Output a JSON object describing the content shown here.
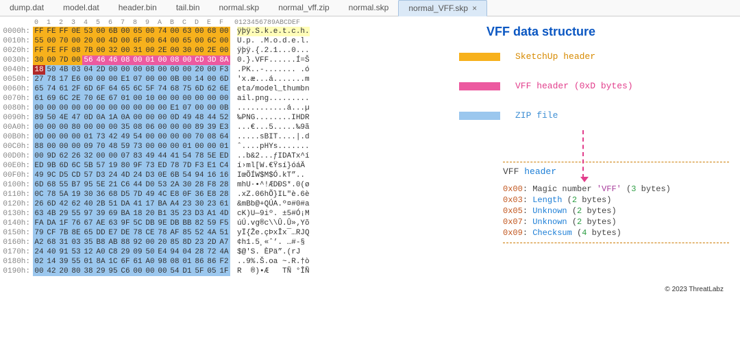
{
  "tabs": [
    {
      "label": "dump.dat",
      "active": false
    },
    {
      "label": "model.dat",
      "active": false
    },
    {
      "label": "header.bin",
      "active": false
    },
    {
      "label": "tail.bin",
      "active": false
    },
    {
      "label": "normal.skp",
      "active": false
    },
    {
      "label": "normal_vff.zip",
      "active": false
    },
    {
      "label": "normal.skp",
      "active": false
    },
    {
      "label": "normal_VFF.skp",
      "active": true
    }
  ],
  "hex": {
    "col_labels": [
      "0",
      "1",
      "2",
      "3",
      "4",
      "5",
      "6",
      "7",
      "8",
      "9",
      "A",
      "B",
      "C",
      "D",
      "E",
      "F"
    ],
    "ascii_header": "0123456789ABCDEF",
    "rows": [
      {
        "offset": "0000h:",
        "bytes": [
          "FF",
          "FE",
          "FF",
          "0E",
          "53",
          "00",
          "6B",
          "00",
          "65",
          "00",
          "74",
          "00",
          "63",
          "00",
          "68",
          "00"
        ],
        "ascii": "ÿþÿ.S.k.e.t.c.h.",
        "hl": "orange",
        "ascii_hl": "hl-yellow"
      },
      {
        "offset": "0010h:",
        "bytes": [
          "55",
          "00",
          "70",
          "00",
          "20",
          "00",
          "4D",
          "00",
          "6F",
          "00",
          "64",
          "00",
          "65",
          "00",
          "6C",
          "00"
        ],
        "ascii": "U.p. .M.o.d.e.l.",
        "hl": "orange"
      },
      {
        "offset": "0020h:",
        "bytes": [
          "FF",
          "FE",
          "FF",
          "08",
          "7B",
          "00",
          "32",
          "00",
          "31",
          "00",
          "2E",
          "00",
          "30",
          "00",
          "2E",
          "00"
        ],
        "ascii": "ÿþÿ.{.2.1...0...",
        "hl": "orange"
      },
      {
        "offset": "0030h:",
        "bytes": [
          "30",
          "00",
          "7D",
          "00",
          "56",
          "46",
          "46",
          "08",
          "00",
          "01",
          "00",
          "08",
          "00",
          "CD",
          "3D",
          "8A"
        ],
        "ascii": "0.}.VFF......Í=Š",
        "hl": "orange",
        "split": 4,
        "hl2": "pink"
      },
      {
        "offset": "0040h:",
        "bytes": [
          "18",
          "50",
          "4B",
          "03",
          "04",
          "2D",
          "00",
          "00",
          "00",
          "08",
          "00",
          "00",
          "00",
          "20",
          "00",
          "F3"
        ],
        "ascii": ".PK..-....... .ó",
        "hl": "blue",
        "first_byte_hl": "hl-darkred"
      },
      {
        "offset": "0050h:",
        "bytes": [
          "27",
          "78",
          "17",
          "E6",
          "00",
          "00",
          "00",
          "E1",
          "07",
          "00",
          "00",
          "0B",
          "00",
          "14",
          "00",
          "6D"
        ],
        "ascii": "'x.æ...á.......m",
        "hl": "blue"
      },
      {
        "offset": "0060h:",
        "bytes": [
          "65",
          "74",
          "61",
          "2F",
          "6D",
          "6F",
          "64",
          "65",
          "6C",
          "5F",
          "74",
          "68",
          "75",
          "6D",
          "62",
          "6E"
        ],
        "ascii": "eta/model_thumbn",
        "hl": "blue"
      },
      {
        "offset": "0070h:",
        "bytes": [
          "61",
          "69",
          "6C",
          "2E",
          "70",
          "6E",
          "67",
          "01",
          "00",
          "10",
          "00",
          "00",
          "00",
          "00",
          "00",
          "00"
        ],
        "ascii": "ail.png.........",
        "hl": "blue"
      },
      {
        "offset": "0080h:",
        "bytes": [
          "00",
          "00",
          "00",
          "00",
          "00",
          "00",
          "00",
          "00",
          "00",
          "00",
          "00",
          "E1",
          "07",
          "00",
          "00",
          "0B"
        ],
        "ascii": "...........á...µ",
        "hl": "blue"
      },
      {
        "offset": "0090h:",
        "bytes": [
          "89",
          "50",
          "4E",
          "47",
          "0D",
          "0A",
          "1A",
          "0A",
          "00",
          "00",
          "00",
          "0D",
          "49",
          "48",
          "44",
          "52"
        ],
        "ascii": "‰PNG........IHDR",
        "hl": "blue"
      },
      {
        "offset": "00A0h:",
        "bytes": [
          "00",
          "00",
          "00",
          "80",
          "00",
          "00",
          "00",
          "35",
          "08",
          "06",
          "00",
          "00",
          "00",
          "89",
          "39",
          "E3"
        ],
        "ascii": "...€...5.....‰9ã",
        "hl": "blue"
      },
      {
        "offset": "00B0h:",
        "bytes": [
          "0D",
          "00",
          "00",
          "00",
          "01",
          "73",
          "42",
          "49",
          "54",
          "00",
          "00",
          "00",
          "00",
          "70",
          "08",
          "64"
        ],
        "ascii": ".....sBIT....|.d",
        "hl": "blue"
      },
      {
        "offset": "00C0h:",
        "bytes": [
          "88",
          "00",
          "00",
          "00",
          "09",
          "70",
          "48",
          "59",
          "73",
          "00",
          "00",
          "00",
          "01",
          "00",
          "00",
          "01"
        ],
        "ascii": "ˆ....pHYs.......",
        "hl": "blue"
      },
      {
        "offset": "00D0h:",
        "bytes": [
          "00",
          "9D",
          "62",
          "26",
          "32",
          "00",
          "00",
          "07",
          "83",
          "49",
          "44",
          "41",
          "54",
          "78",
          "5E",
          "ED"
        ],
        "ascii": "..b&2...ƒIDATx^í",
        "hl": "blue"
      },
      {
        "offset": "00E0h:",
        "bytes": [
          "ED",
          "9B",
          "6D",
          "6C",
          "5B",
          "57",
          "19",
          "80",
          "9F",
          "73",
          "ED",
          "78",
          "7D",
          "F3",
          "E1",
          "C4"
        ],
        "ascii": "í›ml[W.€Ÿsí}óáÄ",
        "hl": "blue"
      },
      {
        "offset": "00F0h:",
        "bytes": [
          "49",
          "9C",
          "D5",
          "CD",
          "57",
          "D3",
          "24",
          "4D",
          "24",
          "D3",
          "0E",
          "6B",
          "54",
          "94",
          "16",
          "16"
        ],
        "ascii": "IœÕÍW$M$Ó.kT”..",
        "hl": "blue"
      },
      {
        "offset": "0100h:",
        "bytes": [
          "6D",
          "68",
          "55",
          "B7",
          "95",
          "5E",
          "21",
          "C6",
          "44",
          "D0",
          "53",
          "2A",
          "30",
          "28",
          "F8",
          "28"
        ],
        "ascii": "mhU·•^!ÆDÐS*.0(ø",
        "hl": "blue"
      },
      {
        "offset": "0110h:",
        "bytes": [
          "0C",
          "78",
          "5A",
          "19",
          "30",
          "36",
          "68",
          "D5",
          "7D",
          "49",
          "4C",
          "E8",
          "0F",
          "36",
          "E8",
          "28"
        ],
        "ascii": ".xZ.06hÕ}IL\"è.6è",
        "hl": "blue"
      },
      {
        "offset": "0120h:",
        "bytes": [
          "26",
          "6D",
          "42",
          "62",
          "40",
          "2B",
          "51",
          "DA",
          "41",
          "17",
          "BA",
          "A4",
          "23",
          "30",
          "23",
          "61"
        ],
        "ascii": "&mBb@+QÚA.º¤#0#a",
        "hl": "blue"
      },
      {
        "offset": "0130h:",
        "bytes": [
          "63",
          "4B",
          "29",
          "55",
          "97",
          "39",
          "69",
          "BA",
          "18",
          "20",
          "B1",
          "35",
          "23",
          "D3",
          "A1",
          "4D"
        ],
        "ascii": "cK)U—9iº. ±5#Ó¡M",
        "hl": "blue"
      },
      {
        "offset": "0140h:",
        "bytes": [
          "FA",
          "DA",
          "1F",
          "76",
          "67",
          "AE",
          "63",
          "9F",
          "5C",
          "DB",
          "9E",
          "DB",
          "BB",
          "82",
          "59",
          "F5"
        ],
        "ascii": "úÚ.vg®c\\\\Û.Û»‚Yõ",
        "hl": "blue"
      },
      {
        "offset": "0150h:",
        "bytes": [
          "79",
          "CF",
          "7B",
          "8E",
          "65",
          "DD",
          "E7",
          "DE",
          "78",
          "CE",
          "78",
          "AF",
          "85",
          "52",
          "4A",
          "51"
        ],
        "ascii": "yÏ{Že.çÞxÎx¯…RJQ",
        "hl": "blue"
      },
      {
        "offset": "0160h:",
        "bytes": [
          "A2",
          "68",
          "31",
          "03",
          "35",
          "B8",
          "AB",
          "88",
          "92",
          "00",
          "20",
          "85",
          "8D",
          "23",
          "2D",
          "A7"
        ],
        "ascii": "¢h1.5¸«ˆ’. …#-§",
        "hl": "blue"
      },
      {
        "offset": "0170h:",
        "bytes": [
          "24",
          "40",
          "91",
          "53",
          "12",
          "A0",
          "C8",
          "29",
          "09",
          "50",
          "E4",
          "94",
          "04",
          "28",
          "72",
          "4A"
        ],
        "ascii": "$@'S. ÈPä”.(rJ",
        "hl": "blue"
      },
      {
        "offset": "0180h:",
        "bytes": [
          "02",
          "14",
          "39",
          "55",
          "01",
          "8A",
          "1C",
          "6F",
          "61",
          "A0",
          "98",
          "08",
          "01",
          "86",
          "86",
          "F2"
        ],
        "ascii": "..9%.Š.oa ~.R.†ò",
        "hl": "blue"
      },
      {
        "offset": "0190h:",
        "bytes": [
          "00",
          "42",
          "20",
          "80",
          "38",
          "29",
          "95",
          "C6",
          "00",
          "00",
          "00",
          "54",
          "D1",
          "5F",
          "05",
          "1F"
        ],
        "ascii": "R  ®)•Æ   TÑ °ÎÑ",
        "hl": "blue"
      }
    ]
  },
  "legend": {
    "title": "VFF data structure",
    "items": [
      {
        "swatch": "orange",
        "label": "SketchUp header",
        "class": "lbl-orange"
      },
      {
        "swatch": "pink",
        "label": "VFF header (0xD bytes)",
        "class": "lbl-pink"
      },
      {
        "swatch": "blue",
        "label": "ZIP file",
        "class": "lbl-blue"
      }
    ]
  },
  "detail": {
    "title_prefix": "VFF ",
    "title_kw": "header",
    "lines": [
      {
        "off": "0x00",
        "text": ": Magic number ",
        "str": "'VFF'",
        "paren_open": " (",
        "num": "3",
        "tail": " bytes)"
      },
      {
        "off": "0x03",
        "text": ": ",
        "field": "Length",
        "paren_open": " (",
        "num": "2",
        "tail": " bytes)"
      },
      {
        "off": "0x05",
        "text": ": ",
        "field": "Unknown",
        "paren_open": " (",
        "num": "2",
        "tail": " bytes)"
      },
      {
        "off": "0x07",
        "text": ": ",
        "field": "Unknown",
        "paren_open": " (",
        "num": "2",
        "tail": " bytes)"
      },
      {
        "off": "0x09",
        "text": ": ",
        "field": "Checksum",
        "paren_open": " (",
        "num": "4",
        "tail": " bytes)"
      }
    ]
  },
  "copyright": "© 2023 ThreatLabz"
}
